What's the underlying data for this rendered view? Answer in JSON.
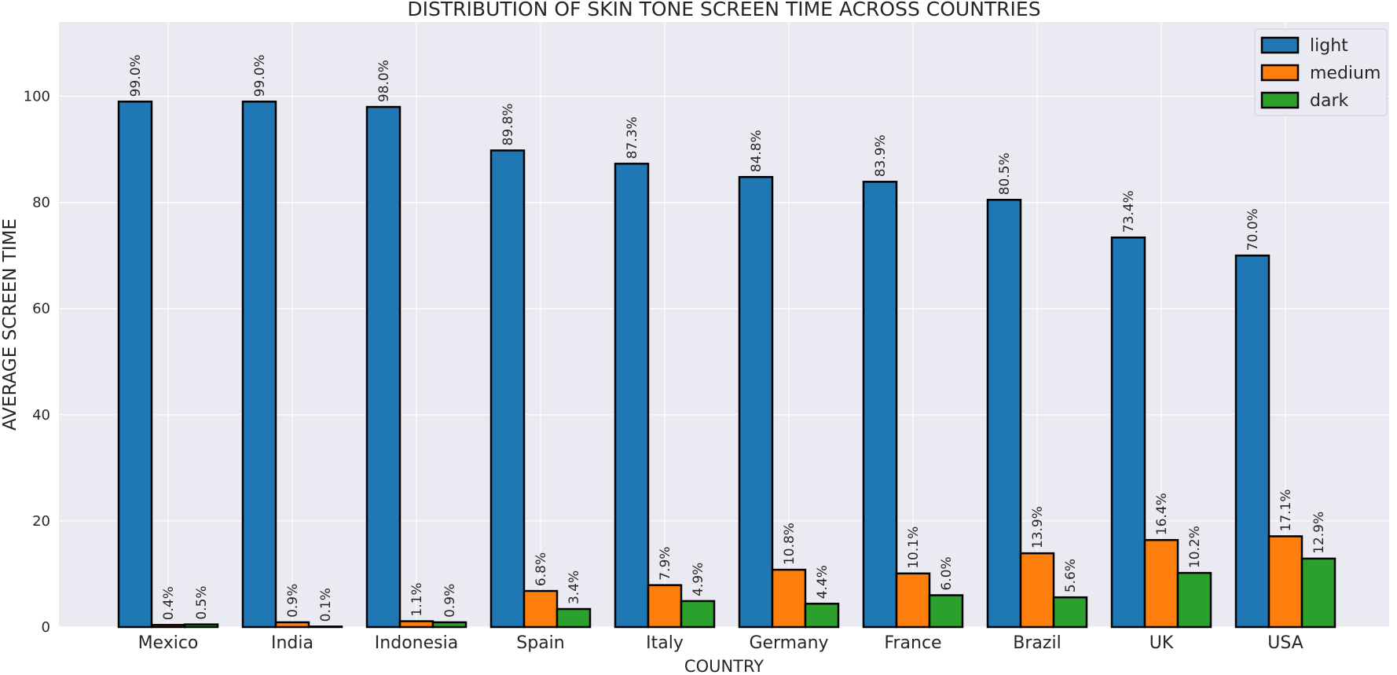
{
  "chart_data": {
    "type": "bar",
    "title": "DISTRIBUTION OF SKIN TONE SCREEN TIME ACROSS COUNTRIES",
    "xlabel": "COUNTRY",
    "ylabel": "AVERAGE SCREEN TIME",
    "categories": [
      "Mexico",
      "India",
      "Indonesia",
      "Spain",
      "Italy",
      "Germany",
      "France",
      "Brazil",
      "UK",
      "USA"
    ],
    "series": [
      {
        "name": "light",
        "color": "#1f77b4",
        "values": [
          99.0,
          99.0,
          98.0,
          89.8,
          87.3,
          84.8,
          83.9,
          80.5,
          73.4,
          70.0
        ]
      },
      {
        "name": "medium",
        "color": "#ff7f0e",
        "values": [
          0.4,
          0.9,
          1.1,
          6.8,
          7.9,
          10.8,
          10.1,
          13.9,
          16.4,
          17.1
        ]
      },
      {
        "name": "dark",
        "color": "#2ca02c",
        "values": [
          0.5,
          0.1,
          0.9,
          3.4,
          4.9,
          4.4,
          6.0,
          5.6,
          10.2,
          12.9
        ]
      }
    ],
    "value_label_suffix": "%",
    "ylim": [
      0,
      114
    ],
    "yticks": [
      0,
      20,
      40,
      60,
      80,
      100
    ],
    "grid": true,
    "legend_position": "top-right",
    "background": "#eaeaf2"
  }
}
